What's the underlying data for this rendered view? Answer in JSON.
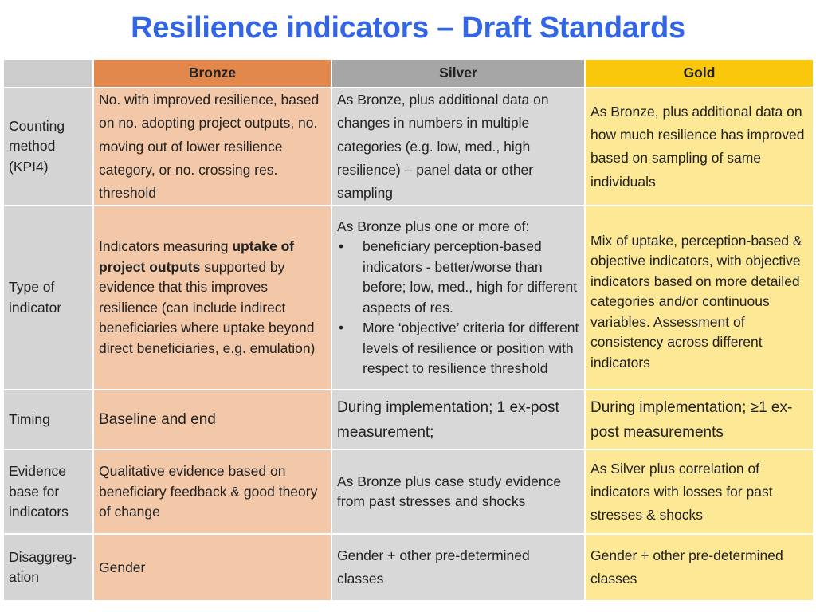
{
  "title": "Resilience indicators – Draft Standards",
  "headers": {
    "blank": "",
    "bronze": "Bronze",
    "silver": "Silver",
    "gold": "Gold"
  },
  "rows": {
    "counting": {
      "label": "Counting method (KPI4)",
      "bronze": "No. with improved resilience, based on no. adopting project outputs, no. moving out of lower resilience category, or  no. crossing res. threshold",
      "silver": "As Bronze, plus additional data on changes in numbers in multiple categories (e.g. low, med., high resilience) – panel data or other sampling",
      "gold": "As Bronze, plus additional data on how much resilience has improved based on sampling of same individuals"
    },
    "type": {
      "label": "Type of indicator",
      "bronze_pre": "Indicators measuring ",
      "bronze_bold": "uptake of project outputs",
      "bronze_post": " supported by evidence that this improves resilience (can include indirect beneficiaries where uptake beyond direct beneficiaries, e.g. emulation)",
      "silver_intro": "As Bronze plus one or more of:",
      "silver_bullets": [
        "beneficiary perception-based indicators - better/worse than before;  low, med., high for different aspects of res.",
        "More ‘objective’ criteria for different levels of resilience or position with respect to resilience threshold"
      ],
      "gold": "Mix of uptake, perception-based & objective indicators, with objective indicators based on more detailed categories and/or continuous variables. Assessment of consistency across different indicators"
    },
    "timing": {
      "label": "Timing",
      "bronze": "Baseline and end",
      "silver": "During implementation; 1 ex-post measurement;",
      "gold": "During implementation; ≥1 ex-post measurements"
    },
    "evidence": {
      "label": "Evidence base for indicators",
      "bronze": "Qualitative evidence based on beneficiary feedback & good theory of change",
      "silver": "As Bronze plus case study evidence from past stresses and shocks",
      "gold": "As Silver plus correlation of indicators with losses for past stresses & shocks"
    },
    "disagg": {
      "label": "Disaggreg-ation",
      "bronze": "Gender",
      "silver": "Gender + other pre-determined classes",
      "gold": "Gender + other pre-determined classes"
    }
  }
}
